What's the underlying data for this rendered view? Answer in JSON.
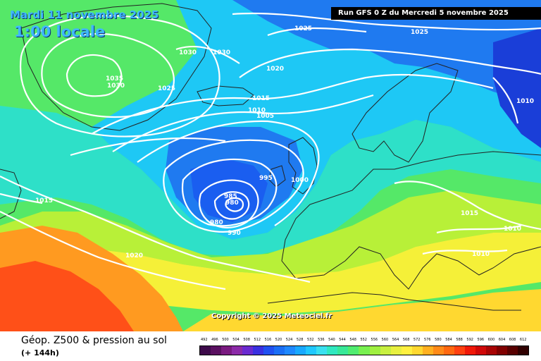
{
  "header": {
    "date": "Mardi 11 novembre 2025",
    "local_time": "1:00 locale",
    "run_info": "Run GFS 0 Z du Mercredi 5 novembre 2025"
  },
  "copyright": "Copyright © 2025 Meteociel.fr",
  "footer": {
    "title": "Géop. Z500 & pression au sol",
    "lead_time": "(+ 144h)"
  },
  "legend": {
    "values": [
      "492",
      "496",
      "500",
      "504",
      "508",
      "512",
      "516",
      "520",
      "524",
      "528",
      "532",
      "536",
      "540",
      "544",
      "548",
      "552",
      "556",
      "560",
      "564",
      "568",
      "572",
      "576",
      "580",
      "584",
      "588",
      "592",
      "596",
      "600",
      "604",
      "608",
      "612"
    ],
    "colors": [
      "#3d0a4a",
      "#5a1060",
      "#7a1a80",
      "#8c2aa8",
      "#6a2ad0",
      "#3a30e0",
      "#2050f0",
      "#1a6ef5",
      "#1e88ff",
      "#18a8ff",
      "#20c8ff",
      "#3ae0f0",
      "#30e8c0",
      "#38e898",
      "#50ec70",
      "#78f050",
      "#a0f040",
      "#c8f040",
      "#e8f040",
      "#fff040",
      "#ffd830",
      "#ffb020",
      "#ff8a18",
      "#ff6810",
      "#ff4010",
      "#f01808",
      "#d00808",
      "#a80404",
      "#800000",
      "#580000",
      "#300000"
    ]
  },
  "isobars": {
    "labels": [
      "1025",
      "1025",
      "1030",
      "1030",
      "1035",
      "1030",
      "1025",
      "1020",
      "1015",
      "1010",
      "1005",
      "995",
      "1000",
      "985",
      "980",
      "980",
      "990",
      "1015",
      "1015",
      "1010",
      "1010",
      "1020",
      "1010"
    ],
    "line_color": "#ffffff"
  },
  "map_colors": {
    "blue_deep": "#1a3ed8",
    "blue": "#1f7af0",
    "cyan": "#1ec8f5",
    "teal": "#2ee0c8",
    "green": "#55e868",
    "yellowgreen": "#b8f038",
    "yellow": "#f5f038",
    "orange": "#ff9a20",
    "red": "#ff5018"
  }
}
